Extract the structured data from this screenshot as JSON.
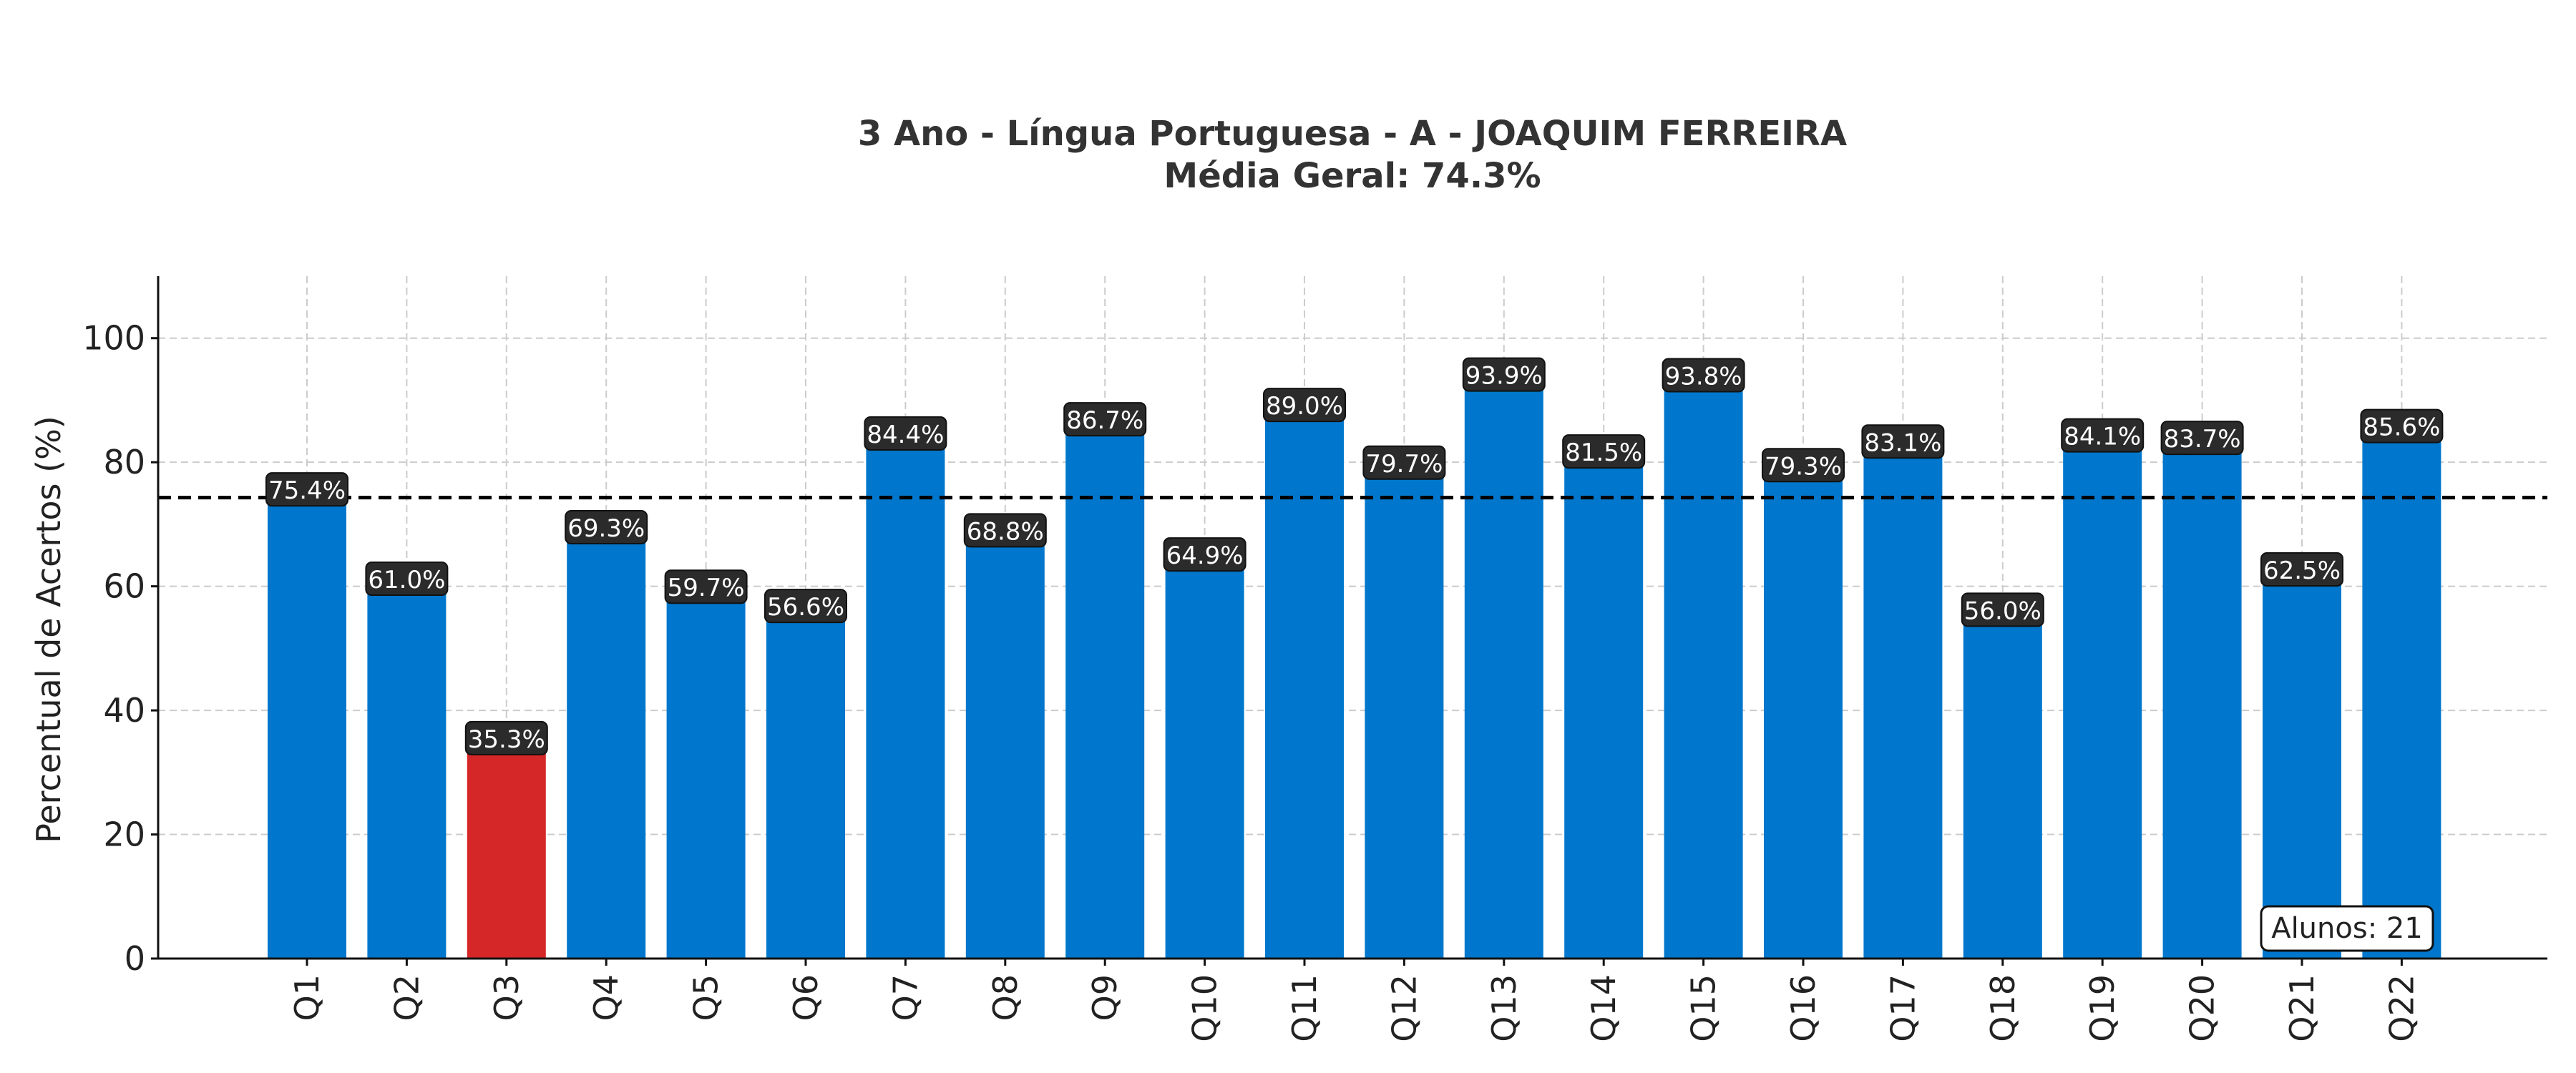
{
  "chart_data": {
    "type": "bar",
    "title": "3 Ano - Língua Portuguesa - A - JOAQUIM FERREIRA",
    "subtitle": "Média Geral: 74.3%",
    "xlabel": "",
    "ylabel": "Percentual de Acertos (%)",
    "ylim": [
      0,
      110
    ],
    "yticks": [
      0,
      20,
      40,
      60,
      80,
      100
    ],
    "grid": true,
    "categories": [
      "Q1",
      "Q2",
      "Q3",
      "Q4",
      "Q5",
      "Q6",
      "Q7",
      "Q8",
      "Q9",
      "Q10",
      "Q11",
      "Q12",
      "Q13",
      "Q14",
      "Q15",
      "Q16",
      "Q17",
      "Q18",
      "Q19",
      "Q20",
      "Q21",
      "Q22"
    ],
    "values": [
      75.4,
      61.0,
      35.3,
      69.3,
      59.7,
      56.6,
      84.4,
      68.8,
      86.7,
      64.9,
      89.0,
      79.7,
      93.9,
      81.5,
      93.8,
      79.3,
      83.1,
      56.0,
      84.1,
      83.7,
      62.5,
      85.6
    ],
    "value_labels": [
      "75.4%",
      "61.0%",
      "35.3%",
      "69.3%",
      "59.7%",
      "56.6%",
      "84.4%",
      "68.8%",
      "86.7%",
      "64.9%",
      "89.0%",
      "79.7%",
      "93.9%",
      "81.5%",
      "93.8%",
      "79.3%",
      "83.1%",
      "56.0%",
      "84.1%",
      "83.7%",
      "62.5%",
      "85.6%"
    ],
    "bar_colors": [
      "#0077cc",
      "#0077cc",
      "#d62728",
      "#0077cc",
      "#0077cc",
      "#0077cc",
      "#0077cc",
      "#0077cc",
      "#0077cc",
      "#0077cc",
      "#0077cc",
      "#0077cc",
      "#0077cc",
      "#0077cc",
      "#0077cc",
      "#0077cc",
      "#0077cc",
      "#0077cc",
      "#0077cc",
      "#0077cc",
      "#0077cc",
      "#0077cc"
    ],
    "mean_line": 74.3,
    "annotation": "Alunos: 21"
  },
  "colors": {
    "bar": "#0077cc",
    "highlight": "#d62728",
    "label_box": "#2b2b2b",
    "grid": "#cccccc",
    "mean_line": "#000000"
  }
}
